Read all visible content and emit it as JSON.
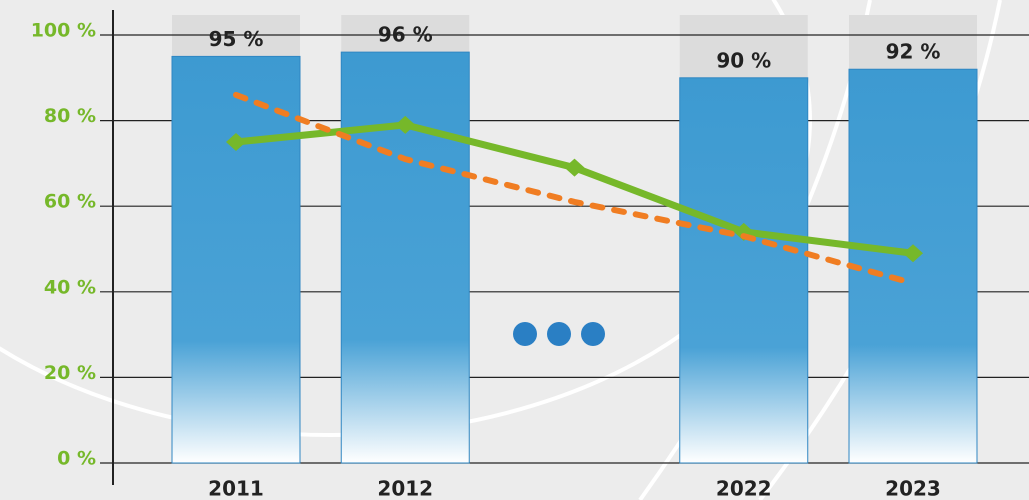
{
  "chart_data": {
    "type": "bar",
    "categories": [
      "2011",
      "2012",
      null,
      "2022",
      "2023"
    ],
    "values": [
      95,
      96,
      null,
      90,
      92
    ],
    "value_labels": [
      "95 %",
      "96 %",
      null,
      "90 %",
      "92 %"
    ],
    "color": "#3d9ad1",
    "series": [
      {
        "type": "line",
        "color": "#76b82a",
        "values": [
          75,
          79,
          69,
          54,
          49
        ]
      },
      {
        "type": "line",
        "dashed": true,
        "color": "#f07d22",
        "values": [
          86,
          71,
          61,
          53,
          42
        ]
      }
    ],
    "ylim": [
      0,
      100
    ],
    "yticks": [
      {
        "value": 0,
        "label": "0 %"
      },
      {
        "value": 20,
        "label": "20 %"
      },
      {
        "value": 40,
        "label": "40 %"
      },
      {
        "value": 60,
        "label": "60 %"
      },
      {
        "value": 80,
        "label": "80 %"
      },
      {
        "value": 100,
        "label": "100 %"
      }
    ],
    "grid": true
  }
}
